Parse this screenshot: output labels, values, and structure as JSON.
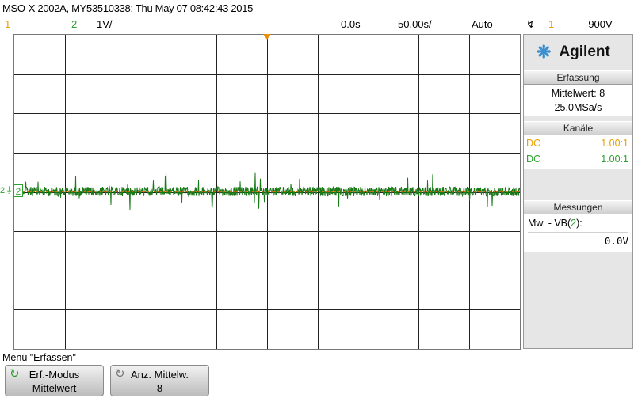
{
  "header": {
    "title": "MSO-X 2002A, MY53510338: Thu May 07 08:42:43 2015"
  },
  "statusbar": {
    "ch1_num": "1",
    "ch2_num": "2",
    "ch2_scale": "1V/",
    "time_offset": "0.0s",
    "time_scale": "50.00s/",
    "trigger_mode": "Auto",
    "trigger_icon": "↯",
    "trigger_channel": "1",
    "trigger_level": "-900V"
  },
  "display": {
    "ch2_marker": "2",
    "ground_symbol": "2⏚",
    "trace_color": "#1a7a1a",
    "grid_color": "#222222",
    "center_line_color": "#c87010"
  },
  "sidepanel": {
    "logo": "Agilent",
    "acquisition": {
      "header": "Erfassung",
      "mode": "Mittelwert: 8",
      "rate": "25.0MSa/s"
    },
    "channels": {
      "header": "Kanäle",
      "rows": [
        {
          "coupling": "DC",
          "probe": "1.00:1",
          "color": "#e8a000"
        },
        {
          "coupling": "DC",
          "probe": "1.00:1",
          "color": "#2ea02e"
        }
      ]
    },
    "measurements": {
      "header": "Messungen",
      "label_prefix": "Mw. - VB(",
      "label_ch": "2",
      "label_suffix": "):",
      "value": "0.0V"
    }
  },
  "menu": {
    "title": "Menü \"Erfassen\"",
    "softkeys": [
      {
        "label": "Erf.-Modus",
        "value": "Mittelwert"
      },
      {
        "label": "Anz. Mittelw.",
        "value": "8"
      }
    ]
  }
}
